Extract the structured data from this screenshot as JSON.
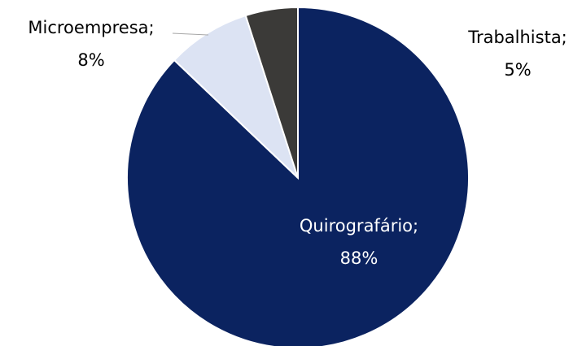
{
  "chart_data": {
    "type": "pie",
    "labels": [
      "Quirografário;",
      "Microempresa;",
      "Trabalhista;"
    ],
    "values": [
      88,
      8,
      5
    ],
    "value_labels": [
      "88%",
      "8%",
      "5%"
    ],
    "colors": [
      "#0b2360",
      "#dce3f3",
      "#3b3a38"
    ]
  }
}
